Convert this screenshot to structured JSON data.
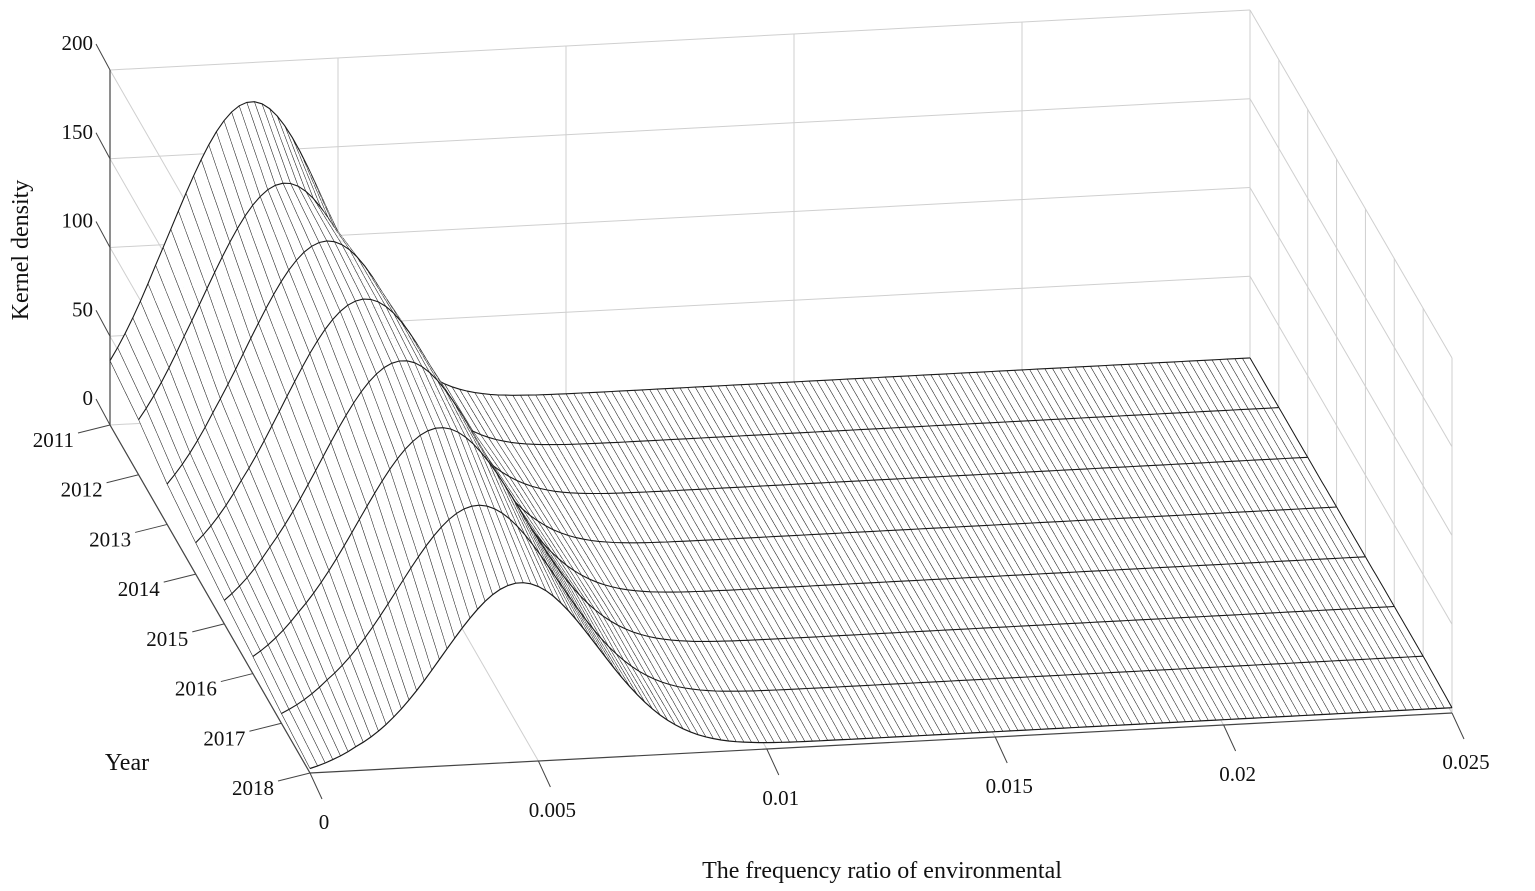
{
  "chart_data": {
    "type": "surface",
    "xlabel": "The frequency ratio of environmental",
    "ylabel": "Year",
    "zlabel": "Kernel density",
    "x_ticks": [
      "0",
      "0.005",
      "0.01",
      "0.015",
      "0.02",
      "0.025"
    ],
    "z_ticks": [
      "0",
      "50",
      "100",
      "150",
      "200"
    ],
    "xlim": [
      0,
      0.025
    ],
    "zlim": [
      0,
      200
    ],
    "grid": true,
    "mesh_color": "#1a1a1a",
    "years": [
      "2011",
      "2012",
      "2013",
      "2014",
      "2015",
      "2016",
      "2017",
      "2018"
    ],
    "series": [
      {
        "name": "2011",
        "peak_x": 0.0031,
        "peak_density": 178,
        "width": 0.00175,
        "tail_density": 4
      },
      {
        "name": "2012",
        "peak_x": 0.0032,
        "peak_density": 160,
        "width": 0.00178,
        "tail_density": 4
      },
      {
        "name": "2013",
        "peak_x": 0.0035,
        "peak_density": 155,
        "width": 0.0018,
        "tail_density": 4
      },
      {
        "name": "2014",
        "peak_x": 0.0037,
        "peak_density": 150,
        "width": 0.0018,
        "tail_density": 4
      },
      {
        "name": "2015",
        "peak_x": 0.0039,
        "peak_density": 143,
        "width": 0.0018,
        "tail_density": 4
      },
      {
        "name": "2016",
        "peak_x": 0.0041,
        "peak_density": 133,
        "width": 0.0018,
        "tail_density": 4
      },
      {
        "name": "2017",
        "peak_x": 0.0043,
        "peak_density": 117,
        "width": 0.00175,
        "tail_density": 4
      },
      {
        "name": "2018",
        "peak_x": 0.0046,
        "peak_density": 101,
        "width": 0.0017,
        "tail_density": 3
      }
    ]
  }
}
